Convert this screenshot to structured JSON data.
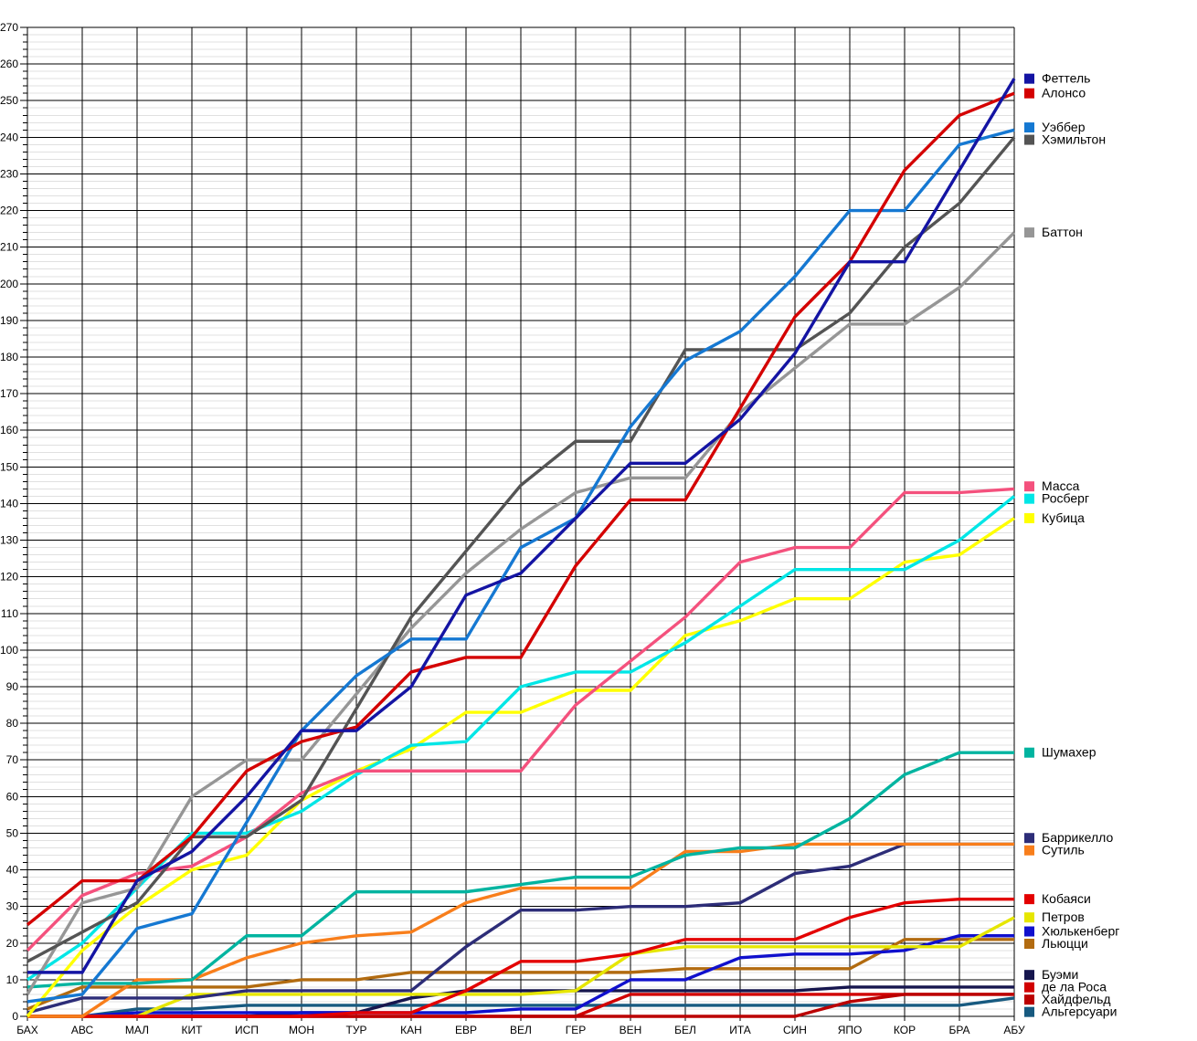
{
  "chart_data": {
    "type": "line",
    "title": "",
    "xlabel": "",
    "ylabel": "",
    "legend_position": "right",
    "grid": {
      "minor_horizontal": true,
      "vertical_per_category": true
    },
    "x_categories": [
      "БАХ",
      "АВС",
      "МАЛ",
      "КИТ",
      "ИСП",
      "МОН",
      "ТУР",
      "КАН",
      "ЕВР",
      "ВЕЛ",
      "ГЕР",
      "ВЕН",
      "БЕЛ",
      "ИТА",
      "СИН",
      "ЯПО",
      "КОР",
      "БРА",
      "АБУ"
    ],
    "y_axis": {
      "min": 0,
      "max": 270,
      "major_step": 10,
      "minor_step": 2
    },
    "series": [
      {
        "name": "Феттель",
        "color": "#1414a3",
        "values": [
          12,
          12,
          37,
          45,
          60,
          78,
          78,
          90,
          115,
          121,
          136,
          151,
          151,
          163,
          181,
          206,
          206,
          231,
          256
        ]
      },
      {
        "name": "Алонсо",
        "color": "#d40000",
        "values": [
          25,
          37,
          37,
          49,
          67,
          75,
          79,
          94,
          98,
          98,
          123,
          141,
          141,
          166,
          191,
          206,
          231,
          246,
          252
        ]
      },
      {
        "name": "Уэббер",
        "color": "#1578d2",
        "values": [
          4,
          6,
          24,
          28,
          53,
          78,
          93,
          103,
          103,
          128,
          136,
          161,
          179,
          187,
          202,
          220,
          220,
          238,
          242
        ]
      },
      {
        "name": "Хэмильтон",
        "color": "#545454",
        "values": [
          15,
          23,
          31,
          49,
          49,
          59,
          84,
          109,
          127,
          145,
          157,
          157,
          182,
          182,
          182,
          192,
          210,
          222,
          240
        ]
      },
      {
        "name": "Баттон",
        "color": "#969696",
        "values": [
          6,
          31,
          35,
          60,
          70,
          70,
          88,
          106,
          121,
          133,
          143,
          147,
          147,
          165,
          177,
          189,
          189,
          199,
          214
        ]
      },
      {
        "name": "Масса",
        "color": "#f4517d",
        "values": [
          18,
          33,
          39,
          41,
          49,
          61,
          67,
          67,
          67,
          67,
          85,
          97,
          109,
          124,
          128,
          128,
          143,
          143,
          144
        ]
      },
      {
        "name": "Росберг",
        "color": "#00e6e6",
        "values": [
          10,
          20,
          35,
          50,
          50,
          56,
          66,
          74,
          75,
          90,
          94,
          94,
          102,
          112,
          122,
          122,
          122,
          130,
          142
        ]
      },
      {
        "name": "Кубица",
        "color": "#ffff00",
        "values": [
          0,
          18,
          30,
          40,
          44,
          59,
          67,
          73,
          83,
          83,
          89,
          89,
          104,
          108,
          114,
          114,
          124,
          126,
          136
        ]
      },
      {
        "name": "Шумахер",
        "color": "#00b4a0",
        "values": [
          8,
          9,
          9,
          10,
          22,
          22,
          34,
          34,
          34,
          36,
          38,
          38,
          44,
          46,
          46,
          54,
          66,
          72,
          72
        ]
      },
      {
        "name": "Баррикелло",
        "color": "#2d2d78",
        "values": [
          1,
          5,
          5,
          5,
          7,
          7,
          7,
          7,
          19,
          29,
          29,
          30,
          30,
          31,
          39,
          41,
          47,
          47,
          47
        ]
      },
      {
        "name": "Сутиль",
        "color": "#f87e1b",
        "values": [
          0,
          0,
          10,
          10,
          16,
          20,
          22,
          23,
          31,
          35,
          35,
          35,
          45,
          45,
          47,
          47,
          47,
          47,
          47
        ]
      },
      {
        "name": "Кобаяси",
        "color": "#e30000",
        "values": [
          0,
          0,
          0,
          0,
          0,
          0,
          1,
          1,
          7,
          15,
          15,
          17,
          21,
          21,
          21,
          27,
          31,
          32,
          32
        ]
      },
      {
        "name": "Петров",
        "color": "#e6e600",
        "values": [
          0,
          0,
          0,
          6,
          6,
          6,
          6,
          6,
          6,
          6,
          7,
          17,
          19,
          19,
          19,
          19,
          19,
          19,
          27
        ]
      },
      {
        "name": "Хюлькенберг",
        "color": "#1010cd",
        "values": [
          0,
          0,
          1,
          1,
          1,
          1,
          1,
          1,
          1,
          2,
          2,
          10,
          10,
          16,
          17,
          17,
          18,
          22,
          22
        ]
      },
      {
        "name": "Льюцци",
        "color": "#b26b10",
        "values": [
          2,
          8,
          8,
          8,
          8,
          10,
          10,
          12,
          12,
          12,
          12,
          12,
          13,
          13,
          13,
          13,
          21,
          21,
          21
        ]
      },
      {
        "name": "Буэми",
        "color": "#16164e",
        "values": [
          0,
          0,
          0,
          0,
          0,
          1,
          1,
          5,
          7,
          7,
          7,
          7,
          7,
          7,
          7,
          8,
          8,
          8,
          8
        ]
      },
      {
        "name": "де ла Роса",
        "color": "#d10000",
        "values": [
          0,
          0,
          0,
          0,
          0,
          0,
          0,
          0,
          0,
          0,
          0,
          6,
          6,
          6,
          6,
          6,
          6,
          6,
          6
        ]
      },
      {
        "name": "Хайдфельд",
        "color": "#bb0000",
        "values": [
          0,
          0,
          0,
          0,
          0,
          0,
          0,
          0,
          0,
          0,
          0,
          0,
          0,
          0,
          0,
          4,
          6,
          6,
          6
        ]
      },
      {
        "name": "Альгерсуари",
        "color": "#175a80",
        "values": [
          0,
          0,
          2,
          2,
          3,
          3,
          3,
          3,
          3,
          3,
          3,
          3,
          3,
          3,
          3,
          3,
          3,
          3,
          5
        ]
      }
    ]
  }
}
